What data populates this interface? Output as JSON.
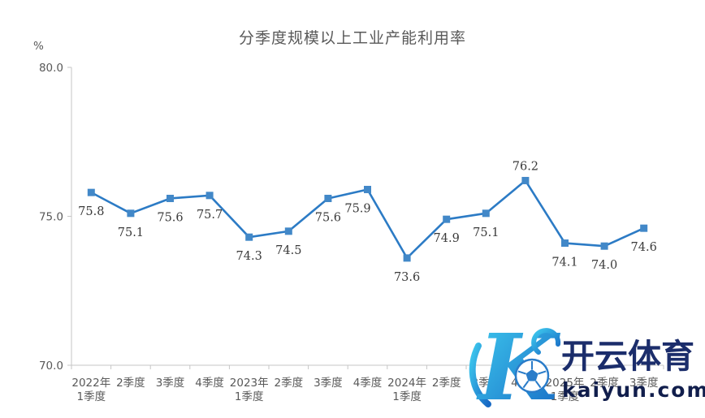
{
  "chart_data": {
    "type": "line",
    "title": "分季度规模以上工业产能利用率",
    "xlabel": "",
    "ylabel": "%",
    "categories": [
      "2022年\n1季度",
      "2季度",
      "3季度",
      "4季度",
      "2023年\n1季度",
      "2季度",
      "3季度",
      "4季度",
      "2024年\n1季度",
      "2季度",
      "3季度",
      "4季度",
      "2025年\n1季度",
      "2季度",
      "3季度"
    ],
    "values": [
      75.8,
      75.1,
      75.6,
      75.7,
      74.3,
      74.5,
      75.6,
      75.9,
      73.6,
      74.9,
      75.1,
      76.2,
      74.1,
      74.0,
      74.6
    ],
    "ylim": [
      70.0,
      80.0
    ],
    "yticks": [
      80.0,
      75.0,
      70.0
    ],
    "grid": false,
    "legend": "none",
    "line_color": "#2C7BC5",
    "marker_color": "#4288C8",
    "axis_color": "#C6C6C6",
    "label_color": "#3A3A3A",
    "tick_label_color": "#595959",
    "label_above_indices": [
      11
    ],
    "label_dx": {
      "7": -12
    }
  },
  "watermark": {
    "logo_letter": "K",
    "brand_name": "开云体育",
    "domain": "kaiyun.com",
    "gradient_start": "#3EC9EE",
    "gradient_end": "#1769C4",
    "brand_text_color": "#1B2D6B",
    "domain_text_color": "#111E4C"
  }
}
